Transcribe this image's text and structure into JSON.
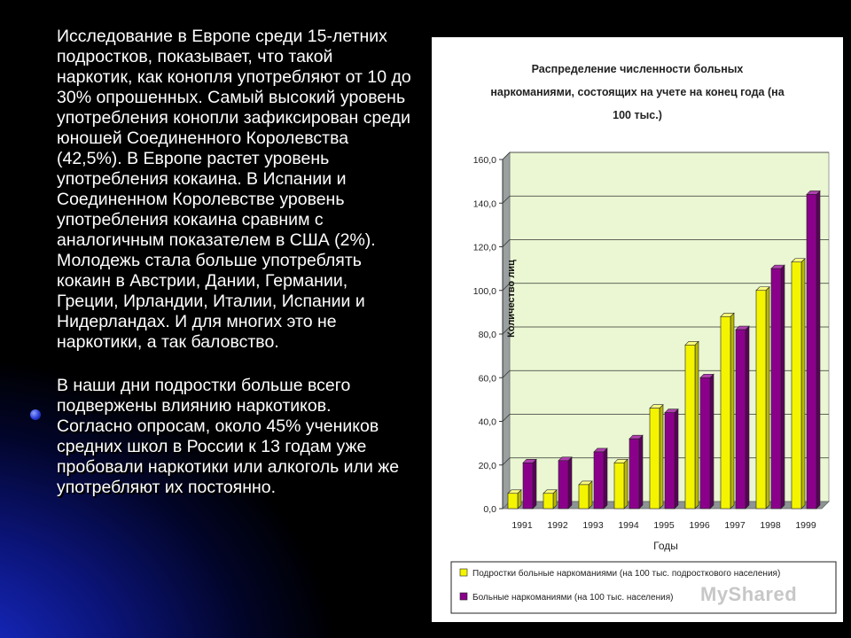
{
  "text": {
    "paragraph1": "Исследование в Европе среди 15-летних подростков, показывает, что такой наркотик, как конопля употребляют от 10 до 30% опрошенных. Самый высокий уровень употребления конопли зафиксирован среди юношей Соединенного Королевства (42,5%). В Европе растет уровень употребления кокаина. В Испании и Соединенном Королевстве уровень употребления кокаина сравним с аналогичным показателем в США (2%). Молодежь стала больше употреблять кокаин в Австрии, Дании, Германии, Греции, Ирландии, Италии, Испании и Нидерландах. И для многих это не наркотики, а так баловство.",
    "paragraph2": "В наши дни подростки больше всего подвержены влиянию наркотиков. Согласно опросам, около 45% учеников средних школ в России к 13 годам уже пробовали наркотики или алкоголь или же употребляют их постоянно."
  },
  "watermark": "MyShared",
  "colors": {
    "plot_bg": "#eaf7d2",
    "series1": "#f4f400",
    "series2": "#8b008b"
  },
  "chart_data": {
    "type": "bar",
    "title": [
      "Распределение численности больных",
      "наркоманиями, состоящих на учете на конец года (на",
      "100 тыс.)"
    ],
    "xlabel": "Годы",
    "ylabel": "Количество лиц",
    "categories": [
      "1991",
      "1992",
      "1993",
      "1994",
      "1995",
      "1996",
      "1997",
      "1998",
      "1999"
    ],
    "yticks": [
      "0,0",
      "20,0",
      "40,0",
      "60,0",
      "80,0",
      "100,0",
      "120,0",
      "140,0",
      "160,0"
    ],
    "ylim": [
      0,
      160
    ],
    "grid": true,
    "legend_position": "bottom",
    "series": [
      {
        "name": "Подростки больные наркоманиями (на 100 тыс. подросткового населения)",
        "values": [
          7,
          7,
          11,
          21,
          46,
          75,
          88,
          100,
          113
        ]
      },
      {
        "name": "Больные наркоманиями (на 100 тыс. населения)",
        "values": [
          21,
          22,
          26,
          32,
          44,
          60,
          82,
          110,
          144
        ]
      }
    ]
  }
}
